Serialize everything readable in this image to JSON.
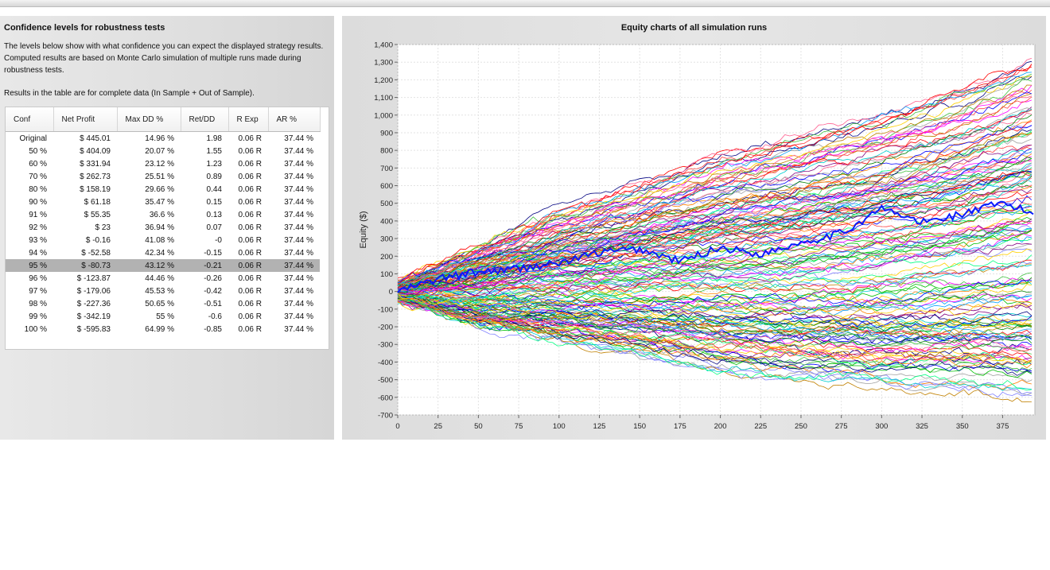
{
  "left_panel": {
    "title": "Confidence levels for robustness tests",
    "description": "The levels below show with what confidence you can expect the displayed strategy results. Computed results are based on Monte Carlo simulation of multiple runs made during robustness tests.",
    "note": "Results in the table are for complete data (In Sample + Out of Sample)."
  },
  "table": {
    "columns": [
      "Conf",
      "Net Profit",
      "Max DD %",
      "Ret/DD",
      "R Exp",
      "AR %"
    ],
    "highlighted_row": 10,
    "rows": [
      [
        "Original",
        "$ 445.01",
        "14.96 %",
        "1.98",
        "0.06 R",
        "37.44 %"
      ],
      [
        "50 %",
        "$ 404.09",
        "20.07 %",
        "1.55",
        "0.06 R",
        "37.44 %"
      ],
      [
        "60 %",
        "$ 331.94",
        "23.12 %",
        "1.23",
        "0.06 R",
        "37.44 %"
      ],
      [
        "70 %",
        "$ 262.73",
        "25.51 %",
        "0.89",
        "0.06 R",
        "37.44 %"
      ],
      [
        "80 %",
        "$ 158.19",
        "29.66 %",
        "0.44",
        "0.06 R",
        "37.44 %"
      ],
      [
        "90 %",
        "$ 61.18",
        "35.47 %",
        "0.15",
        "0.06 R",
        "37.44 %"
      ],
      [
        "91 %",
        "$ 55.35",
        "36.6 %",
        "0.13",
        "0.06 R",
        "37.44 %"
      ],
      [
        "92 %",
        "$ 23",
        "36.94 %",
        "0.07",
        "0.06 R",
        "37.44 %"
      ],
      [
        "93 %",
        "$ -0.16",
        "41.08 %",
        "-0",
        "0.06 R",
        "37.44 %"
      ],
      [
        "94 %",
        "$ -52.58",
        "42.34 %",
        "-0.15",
        "0.06 R",
        "37.44 %"
      ],
      [
        "95 %",
        "$ -80.73",
        "43.12 %",
        "-0.21",
        "0.06 R",
        "37.44 %"
      ],
      [
        "96 %",
        "$ -123.87",
        "44.46 %",
        "-0.26",
        "0.06 R",
        "37.44 %"
      ],
      [
        "97 %",
        "$ -179.06",
        "45.53 %",
        "-0.42",
        "0.06 R",
        "37.44 %"
      ],
      [
        "98 %",
        "$ -227.36",
        "50.65 %",
        "-0.51",
        "0.06 R",
        "37.44 %"
      ],
      [
        "99 %",
        "$ -342.19",
        "55 %",
        "-0.6",
        "0.06 R",
        "37.44 %"
      ],
      [
        "100 %",
        "$ -595.83",
        "64.99 %",
        "-0.85",
        "0.06 R",
        "37.44 %"
      ]
    ]
  },
  "chart_data": {
    "type": "line",
    "title": "Equity charts of all simulation runs",
    "xlabel": "",
    "ylabel": "Equity ($)",
    "xlim": [
      0,
      395
    ],
    "ylim": [
      -700,
      1400
    ],
    "x_ticks": [
      "0",
      "25",
      "50",
      "75",
      "100",
      "125",
      "150",
      "175",
      "200",
      "225",
      "250",
      "275",
      "300",
      "325",
      "350",
      "375"
    ],
    "y_ticks": [
      "1,400",
      "1,300",
      "1,200",
      "1,100",
      "1,000",
      "900",
      "800",
      "700",
      "600",
      "500",
      "400",
      "300",
      "200",
      "100",
      "0",
      "-100",
      "-200",
      "-300",
      "-400",
      "-500",
      "-600",
      "-700"
    ],
    "grid": true,
    "simulation_runs_note": "many randomized equity curves drawn in assorted colors",
    "original_series": {
      "color": "#0a1cff",
      "x": [
        0,
        25,
        50,
        75,
        100,
        125,
        150,
        175,
        200,
        225,
        250,
        275,
        300,
        325,
        350,
        375,
        395
      ],
      "y": [
        0,
        70,
        110,
        130,
        160,
        220,
        240,
        170,
        250,
        210,
        280,
        330,
        470,
        390,
        440,
        500,
        440
      ]
    },
    "envelope": {
      "x": [
        0,
        50,
        100,
        150,
        200,
        250,
        300,
        350,
        395
      ],
      "upper": [
        60,
        260,
        450,
        600,
        760,
        880,
        1000,
        1150,
        1320
      ],
      "lower": [
        -60,
        -210,
        -300,
        -380,
        -460,
        -520,
        -560,
        -580,
        -610
      ]
    },
    "colors": [
      "#ff0000",
      "#00c000",
      "#0000ff",
      "#ff00ff",
      "#00d0d0",
      "#ffd000",
      "#ff8000",
      "#800080",
      "#008000",
      "#000080",
      "#a0a0a0",
      "#ff6090",
      "#00ff80",
      "#8080ff",
      "#c08000",
      "#00a0ff",
      "#ff4040",
      "#40c040"
    ]
  }
}
